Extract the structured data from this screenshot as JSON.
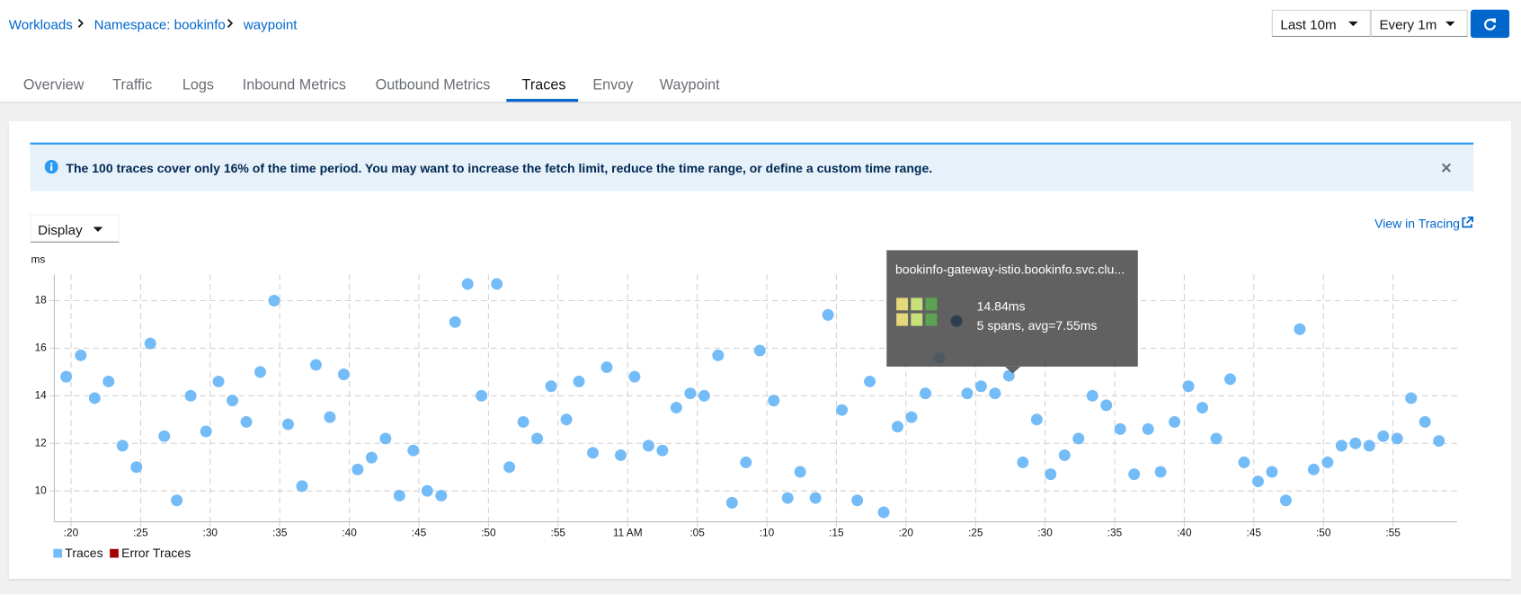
{
  "breadcrumb": [
    "Workloads",
    "Namespace: bookinfo",
    "waypoint"
  ],
  "controls": {
    "range": "Last 10m",
    "refresh": "Every 1m"
  },
  "tabs": [
    "Overview",
    "Traffic",
    "Logs",
    "Inbound Metrics",
    "Outbound Metrics",
    "Traces",
    "Envoy",
    "Waypoint"
  ],
  "alert": "The 100 traces cover only 16% of the time period. You may want to increase the fetch limit, reduce the time range, or define a custom time range.",
  "display": "Display",
  "link": "View in Tracing",
  "tooltip": {
    "title": "bookinfo-gateway-istio.bookinfo.svc.clu...",
    "duration": "14.84ms",
    "spans": "5 spans, avg=7.55ms"
  },
  "chart_data": {
    "type": "scatter",
    "y_label": "ms",
    "grid": true,
    "xlim": [
      18.8,
      119.6
    ],
    "ylim": [
      8.7,
      19.1
    ],
    "yticks": [
      10,
      12,
      14,
      16,
      18
    ],
    "xticks": [
      {
        "value": 20,
        "label": ":20"
      },
      {
        "value": 25,
        "label": ":25"
      },
      {
        "value": 30,
        "label": ":30"
      },
      {
        "value": 35,
        "label": ":35"
      },
      {
        "value": 40,
        "label": ":40"
      },
      {
        "value": 45,
        "label": ":45"
      },
      {
        "value": 50,
        "label": ":50"
      },
      {
        "value": 55,
        "label": ":55"
      },
      {
        "value": 60,
        "label": "11 AM"
      },
      {
        "value": 65,
        "label": ":05"
      },
      {
        "value": 70,
        "label": ":10"
      },
      {
        "value": 75,
        "label": ":15"
      },
      {
        "value": 80,
        "label": ":20"
      },
      {
        "value": 85,
        "label": ":25"
      },
      {
        "value": 90,
        "label": ":30"
      },
      {
        "value": 95,
        "label": ":35"
      },
      {
        "value": 100,
        "label": ":40"
      },
      {
        "value": 105,
        "label": ":45"
      },
      {
        "value": 110,
        "label": ":50"
      },
      {
        "value": 115,
        "label": ":55"
      }
    ],
    "series": [
      {
        "name": "Traces",
        "color": "#73bcf7",
        "x": [
          19.65,
          20.7,
          21.7,
          22.7,
          23.7,
          24.7,
          25.7,
          26.7,
          27.6,
          28.6,
          29.7,
          30.6,
          31.6,
          32.6,
          33.6,
          34.6,
          35.6,
          36.6,
          37.6,
          38.6,
          39.6,
          40.6,
          41.6,
          42.6,
          43.6,
          44.6,
          45.6,
          46.6,
          47.6,
          48.5,
          49.5,
          50.6,
          51.5,
          52.5,
          53.5,
          54.5,
          55.6,
          56.5,
          57.5,
          58.5,
          59.5,
          60.5,
          61.5,
          62.5,
          63.5,
          64.5,
          65.5,
          66.5,
          67.5,
          68.5,
          69.5,
          70.5,
          71.5,
          72.4,
          73.5,
          74.4,
          75.4,
          76.5,
          77.4,
          78.4,
          79.4,
          80.4,
          81.4,
          82.4,
          84.4,
          85.4,
          86.4,
          87.4,
          88.4,
          89.4,
          90.4,
          91.4,
          92.4,
          93.4,
          94.4,
          95.4,
          96.4,
          97.4,
          98.3,
          99.3,
          100.3,
          101.3,
          102.3,
          103.3,
          104.3,
          105.3,
          106.3,
          107.3,
          108.3,
          109.3,
          110.3,
          111.3,
          112.3,
          113.3,
          114.3,
          115.3,
          116.3,
          117.3,
          118.3
        ],
        "values": [
          14.8,
          15.7,
          13.9,
          14.6,
          11.9,
          11.0,
          16.2,
          12.3,
          9.6,
          14.0,
          12.5,
          14.6,
          13.8,
          12.9,
          15.0,
          18.0,
          12.8,
          10.2,
          15.3,
          13.1,
          14.9,
          10.9,
          11.4,
          12.2,
          9.8,
          11.7,
          10.0,
          9.8,
          17.1,
          18.7,
          14.0,
          18.7,
          11.0,
          12.9,
          12.2,
          14.4,
          13.0,
          14.6,
          11.6,
          15.2,
          11.5,
          14.8,
          11.9,
          11.7,
          13.5,
          14.1,
          14.0,
          15.7,
          9.5,
          11.2,
          15.9,
          13.8,
          9.7,
          10.8,
          9.7,
          17.4,
          13.4,
          9.6,
          14.6,
          9.1,
          12.7,
          13.1,
          14.1,
          15.6,
          14.1,
          14.4,
          14.1,
          14.84,
          11.2,
          13.0,
          10.7,
          11.5,
          12.2,
          14.0,
          13.6,
          12.6,
          10.7,
          12.6,
          10.8,
          12.9,
          14.4,
          13.5,
          12.2,
          14.7,
          11.2,
          10.4,
          10.8,
          9.6,
          16.8,
          10.9,
          11.2,
          11.9,
          12.0,
          11.9,
          12.3,
          12.2,
          13.9,
          12.9,
          12.1
        ]
      },
      {
        "name": "Error Traces",
        "color": "#a30000",
        "x": [],
        "values": []
      }
    ]
  }
}
